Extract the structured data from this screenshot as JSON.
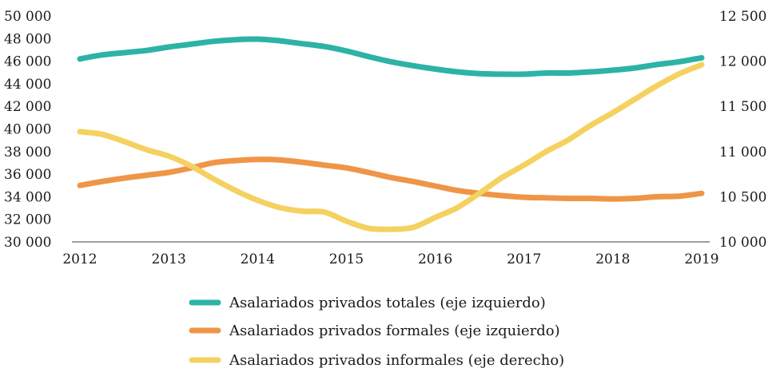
{
  "chart_data": {
    "type": "line",
    "x_ticks": [
      "2012",
      "2013",
      "2014",
      "2015",
      "2016",
      "2017",
      "2018",
      "2019"
    ],
    "x_range": [
      2012,
      2019
    ],
    "y_left": {
      "range": [
        30000,
        50000
      ],
      "ticks": [
        30000,
        32000,
        34000,
        36000,
        38000,
        40000,
        42000,
        44000,
        46000,
        48000,
        50000
      ],
      "tick_labels": [
        "30 000",
        "32 000",
        "34 000",
        "36 000",
        "38 000",
        "40 000",
        "42 000",
        "44 000",
        "46 000",
        "48 000",
        "50 000"
      ]
    },
    "y_right": {
      "range": [
        10000,
        12500
      ],
      "ticks": [
        10000,
        10500,
        11000,
        11500,
        12000,
        12500
      ],
      "tick_labels": [
        "10 000",
        "10 500",
        "11 000",
        "11 500",
        "12 000",
        "12 500"
      ]
    },
    "grid": false,
    "legend_position": "bottom",
    "series": [
      {
        "name": "Asalariados privados totales (eje izquierdo)",
        "axis": "left",
        "color": "#2db3a5",
        "x": [
          2012,
          2012.25,
          2012.5,
          2012.75,
          2013,
          2013.25,
          2013.5,
          2013.75,
          2014,
          2014.25,
          2014.5,
          2014.75,
          2015,
          2015.25,
          2015.5,
          2015.75,
          2016,
          2016.25,
          2016.5,
          2016.75,
          2017,
          2017.25,
          2017.5,
          2017.75,
          2018,
          2018.25,
          2018.5,
          2018.75,
          2019
        ],
        "values": [
          46200,
          46550,
          46750,
          46950,
          47250,
          47500,
          47750,
          47900,
          47950,
          47800,
          47550,
          47300,
          46900,
          46400,
          45950,
          45600,
          45300,
          45050,
          44900,
          44850,
          44850,
          44950,
          44950,
          45050,
          45200,
          45400,
          45700,
          45950,
          46300
        ]
      },
      {
        "name": "Asalariados privados formales (eje izquierdo)",
        "axis": "left",
        "color": "#ef9547",
        "x": [
          2012,
          2012.25,
          2012.5,
          2012.75,
          2013,
          2013.25,
          2013.5,
          2013.75,
          2014,
          2014.25,
          2014.5,
          2014.75,
          2015,
          2015.25,
          2015.5,
          2015.75,
          2016,
          2016.25,
          2016.5,
          2016.75,
          2017,
          2017.25,
          2017.5,
          2017.75,
          2018,
          2018.25,
          2018.5,
          2018.75,
          2019
        ],
        "values": [
          35000,
          35350,
          35650,
          35900,
          36150,
          36550,
          37000,
          37200,
          37300,
          37250,
          37050,
          36800,
          36550,
          36150,
          35700,
          35350,
          34950,
          34550,
          34300,
          34100,
          33950,
          33900,
          33850,
          33850,
          33800,
          33850,
          34000,
          34050,
          34300
        ]
      },
      {
        "name": "Asalariados privados informales (eje derecho)",
        "axis": "right",
        "color": "#f4d160",
        "x": [
          2012,
          2012.25,
          2012.5,
          2012.75,
          2013,
          2013.25,
          2013.5,
          2013.75,
          2014,
          2014.25,
          2014.5,
          2014.75,
          2015,
          2015.25,
          2015.5,
          2015.75,
          2016,
          2016.25,
          2016.5,
          2016.75,
          2017,
          2017.25,
          2017.5,
          2017.75,
          2018,
          2018.25,
          2018.5,
          2018.75,
          2019
        ],
        "values": [
          11220,
          11190,
          11110,
          11020,
          10950,
          10840,
          10700,
          10570,
          10460,
          10380,
          10340,
          10330,
          10230,
          10150,
          10140,
          10160,
          10270,
          10380,
          10540,
          10710,
          10850,
          11000,
          11130,
          11290,
          11430,
          11580,
          11730,
          11860,
          11960
        ]
      }
    ]
  }
}
